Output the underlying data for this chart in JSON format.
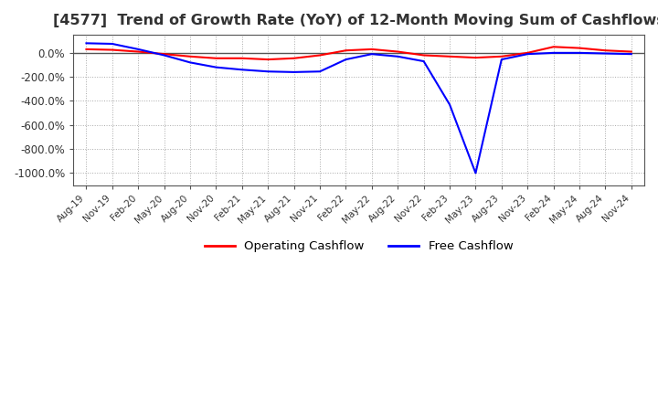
{
  "title": "[4577]  Trend of Growth Rate (YoY) of 12-Month Moving Sum of Cashflows",
  "title_fontsize": 11.5,
  "ylim": [
    -1100,
    150
  ],
  "yticks": [
    0,
    -200,
    -400,
    -600,
    -800,
    -1000
  ],
  "ytick_labels": [
    "0.0%",
    "-200.0%",
    "-400.0%",
    "-600.0%",
    "-800.0%",
    "-1000.0%"
  ],
  "x_labels": [
    "Aug-19",
    "Nov-19",
    "Feb-20",
    "May-20",
    "Aug-20",
    "Nov-20",
    "Feb-21",
    "May-21",
    "Aug-21",
    "Nov-21",
    "Feb-22",
    "May-22",
    "Aug-22",
    "Nov-22",
    "Feb-23",
    "May-23",
    "Aug-23",
    "Nov-23",
    "Feb-24",
    "May-24",
    "Aug-24",
    "Nov-24"
  ],
  "operating_color": "#ff0000",
  "free_color": "#0000ff",
  "legend_labels": [
    "Operating Cashflow",
    "Free Cashflow"
  ],
  "operating_cashflow": [
    30,
    25,
    10,
    -10,
    -30,
    -45,
    -45,
    -55,
    -45,
    -20,
    20,
    30,
    10,
    -20,
    -30,
    -40,
    -30,
    0,
    50,
    40,
    20,
    10
  ],
  "free_cashflow": [
    80,
    75,
    30,
    -20,
    -80,
    -120,
    -140,
    -155,
    -160,
    -155,
    -55,
    -10,
    -30,
    -70,
    -430,
    -1000,
    -55,
    -10,
    0,
    0,
    -5,
    -10
  ],
  "background_color": "#ffffff",
  "grid_color": "#aaaaaa",
  "zero_line_color": "#555555",
  "border_color": "#555555"
}
